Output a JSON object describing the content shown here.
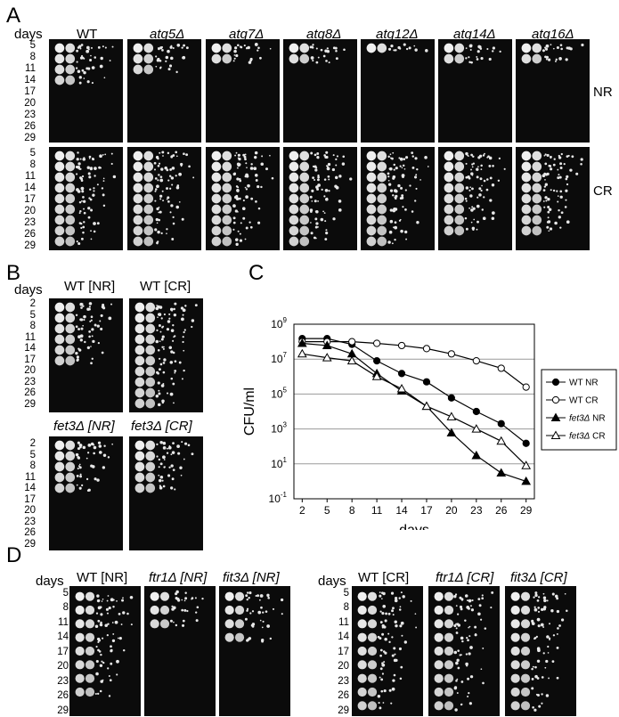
{
  "panels": {
    "A": {
      "label": "A",
      "days_header": "days",
      "days": [
        "5",
        "8",
        "11",
        "14",
        "17",
        "20",
        "23",
        "26",
        "29"
      ],
      "strains": [
        "WT",
        "atg5Δ",
        "atg7Δ",
        "atg8Δ",
        "atg12Δ",
        "atg14Δ",
        "atg16Δ"
      ],
      "row_labels": [
        "NR",
        "CR"
      ],
      "nr_survival_rows": [
        4,
        3,
        2,
        2,
        1,
        2,
        2
      ],
      "cr_survival_rows": [
        9,
        9,
        9,
        9,
        9,
        8,
        8
      ]
    },
    "B": {
      "label": "B",
      "days_header": "days",
      "days": [
        "2",
        "5",
        "8",
        "11",
        "14",
        "17",
        "20",
        "23",
        "26",
        "29"
      ],
      "top_strains": [
        "WT [NR]",
        "WT [CR]"
      ],
      "bottom_strains": [
        "fet3Δ [NR]",
        "fet3Δ [CR]"
      ],
      "survival_rows": {
        "wt_nr": 6,
        "wt_cr": 10,
        "fet3_nr": 5,
        "fet3_cr": 5
      }
    },
    "C": {
      "label": "C"
    },
    "D": {
      "label": "D",
      "days_header": "days",
      "days": [
        "5",
        "8",
        "11",
        "14",
        "17",
        "20",
        "23",
        "26",
        "29"
      ],
      "nr_strains": [
        "WT [NR]",
        "ftr1Δ [NR]",
        "fit3Δ [NR]"
      ],
      "cr_strains": [
        "WT [CR]",
        "ftr1Δ [CR]",
        "fit3Δ [CR]"
      ],
      "survival_rows_nr": [
        8,
        3,
        4
      ],
      "survival_rows_cr": [
        9,
        9,
        9
      ]
    }
  },
  "chart_data": {
    "type": "line",
    "ylabel": "CFU/ml",
    "xlabel": "days",
    "x": [
      2,
      5,
      8,
      11,
      14,
      17,
      20,
      23,
      26,
      29
    ],
    "xticks": [
      "2",
      "5",
      "8",
      "11",
      "14",
      "17",
      "20",
      "23",
      "26",
      "29"
    ],
    "yscale": "log",
    "ylim": [
      0.1,
      1000000000
    ],
    "yticks": [
      {
        "base": "10",
        "exp": "9"
      },
      {
        "base": "10",
        "exp": "7"
      },
      {
        "base": "10",
        "exp": "5"
      },
      {
        "base": "10",
        "exp": "3"
      },
      {
        "base": "10",
        "exp": "1"
      },
      {
        "base": "10",
        "exp": "-1"
      }
    ],
    "grid": "horizontal",
    "legend_position": "right",
    "series": [
      {
        "name": "WT NR",
        "marker": "filled-circle",
        "values": [
          150000000,
          150000000,
          70000000,
          8000000,
          1500000,
          500000,
          60000,
          10000,
          2000,
          150
        ]
      },
      {
        "name": "WT CR",
        "marker": "open-circle",
        "values": [
          100000000,
          100000000,
          100000000,
          80000000,
          60000000,
          40000000,
          20000000,
          8000000,
          3000000,
          250000
        ]
      },
      {
        "name": "fet3Δ NR",
        "marker": "filled-triangle",
        "values": [
          80000000,
          60000000,
          20000000,
          1500000,
          150000,
          20000,
          600,
          30,
          3,
          1
        ]
      },
      {
        "name": "fet3Δ CR",
        "marker": "open-triangle",
        "values": [
          20000000,
          12000000,
          8000000,
          1000000,
          200000,
          20000,
          5000,
          1000,
          200,
          8
        ]
      }
    ],
    "legend": [
      {
        "name_main": "WT NR",
        "name_suffix": ""
      },
      {
        "name_main": "WT CR",
        "name_suffix": ""
      },
      {
        "name_main": "fet3Δ",
        "name_suffix": " NR"
      },
      {
        "name_main": "fet3Δ",
        "name_suffix": " CR"
      }
    ]
  }
}
